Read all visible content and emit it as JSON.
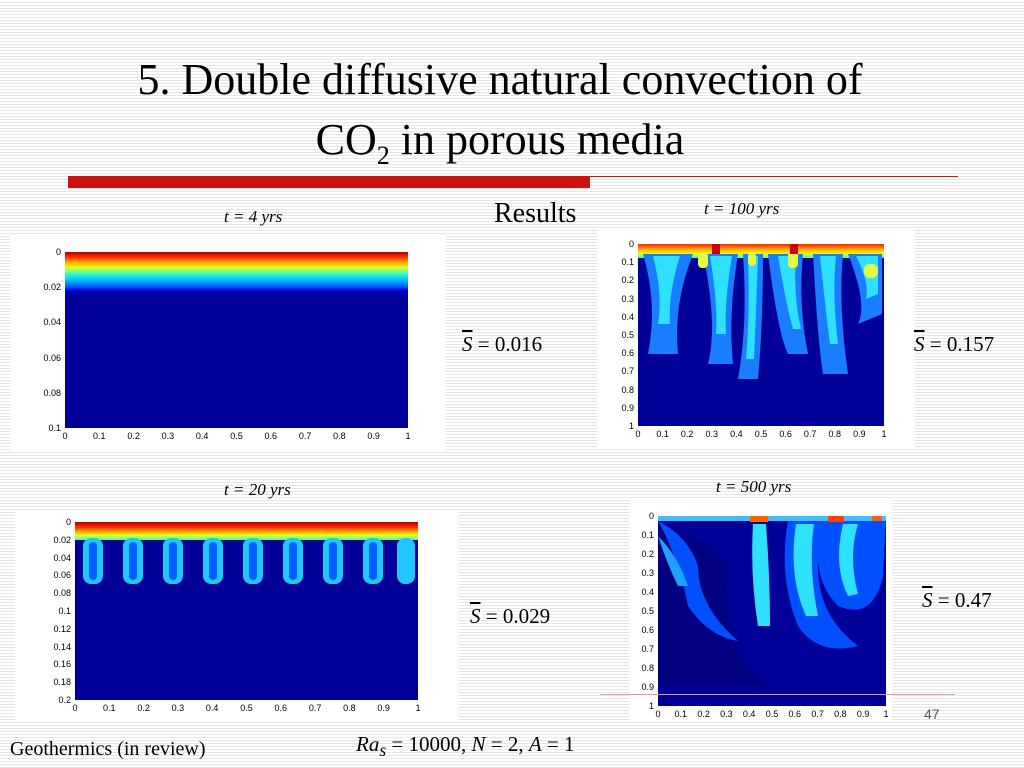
{
  "title": {
    "line1": "5. Double diffusive natural convection of",
    "line2_pre": "CO",
    "line2_sub": "2",
    "line2_post": " in porous media"
  },
  "results_label": "Results",
  "panels": {
    "p4": {
      "caption": "t = 4 yrs",
      "s_value": "= 0.016",
      "y_ticks": [
        "0",
        "0.02",
        "0.04",
        "0.06",
        "0.08",
        "0.1"
      ],
      "x_ticks": [
        "0",
        "0.1",
        "0.2",
        "0.3",
        "0.4",
        "0.5",
        "0.6",
        "0.7",
        "0.8",
        "0.9",
        "1"
      ]
    },
    "p20": {
      "caption": "t = 20 yrs",
      "s_value": "= 0.029",
      "y_ticks": [
        "0",
        "0.02",
        "0.04",
        "0.06",
        "0.08",
        "0.1",
        "0.12",
        "0.14",
        "0.16",
        "0.18",
        "0.2"
      ],
      "x_ticks": [
        "0",
        "0.1",
        "0.2",
        "0.3",
        "0.4",
        "0.5",
        "0.6",
        "0.7",
        "0.8",
        "0.9",
        "1"
      ]
    },
    "p100": {
      "caption": "t = 100 yrs",
      "s_value": "= 0.157",
      "y_ticks": [
        "0",
        "0.1",
        "0.2",
        "0.3",
        "0.4",
        "0.5",
        "0.6",
        "0.7",
        "0.8",
        "0.9",
        "1"
      ],
      "x_ticks": [
        "0",
        "0.1",
        "0.2",
        "0.3",
        "0.4",
        "0.5",
        "0.6",
        "0.7",
        "0.8",
        "0.9",
        "1"
      ]
    },
    "p500": {
      "caption": "t = 500 yrs",
      "s_value": "= 0.47",
      "y_ticks": [
        "0",
        "0.1",
        "0.2",
        "0.3",
        "0.4",
        "0.5",
        "0.6",
        "0.7",
        "0.8",
        "0.9",
        "1"
      ],
      "x_ticks": [
        "0",
        "0.1",
        "0.2",
        "0.3",
        "0.4",
        "0.5",
        "0.6",
        "0.7",
        "0.8",
        "0.9",
        "1"
      ]
    }
  },
  "s_symbol": "S",
  "footer": {
    "reference": "Geothermics (in review)",
    "ra": "Ra",
    "ra_sub": "s",
    "ra_value": " = 10000, ",
    "n": "N",
    "n_value": " = 2, ",
    "a": "A",
    "a_value": " = 1"
  },
  "page_number": "47",
  "colors": {
    "rule": "#cc1111",
    "plot_bg": "#000099"
  }
}
